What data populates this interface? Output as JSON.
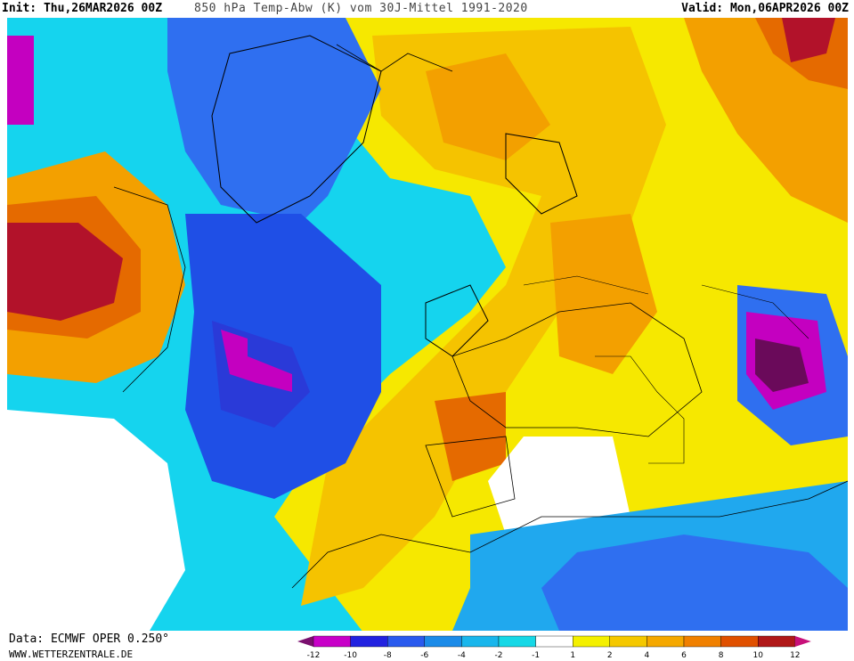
{
  "header": {
    "init_label": "Init:",
    "init_value": "Thu,26MAR2026 00Z",
    "title": "850 hPa Temp-Abw (K) vom 30J-Mittel 1991-2020",
    "valid_label": "Valid:",
    "valid_value": "Mon,06APR2026 00Z"
  },
  "footer": {
    "data_source": "Data: ECMWF OPER 0.250°",
    "website": "WWW.WETTERZENTRALE.DE"
  },
  "legend": {
    "ticks": [
      "-12",
      "-10",
      "-8",
      "-6",
      "-4",
      "-2",
      "-1",
      "1",
      "2",
      "4",
      "6",
      "8",
      "10",
      "12"
    ],
    "colors": [
      "#7a0f6e",
      "#c800c8",
      "#2222e0",
      "#2a5aee",
      "#1b8be8",
      "#19b6ec",
      "#16d8e6",
      "#ffffff",
      "#f4f000",
      "#f5c800",
      "#f5a800",
      "#f08000",
      "#e05000",
      "#b01818",
      "#c8107a"
    ]
  },
  "palette": {
    "deep_blue": "#1f4fe6",
    "blue": "#2f6ff0",
    "light_blue": "#20a8ee",
    "cyan": "#15d4ee",
    "yellow": "#f6e800",
    "gold": "#f5c300",
    "orange": "#f3a000",
    "dark_orange": "#e56a00",
    "red": "#b2122a",
    "magenta": "#c400c0",
    "purple": "#6a0a5a"
  }
}
